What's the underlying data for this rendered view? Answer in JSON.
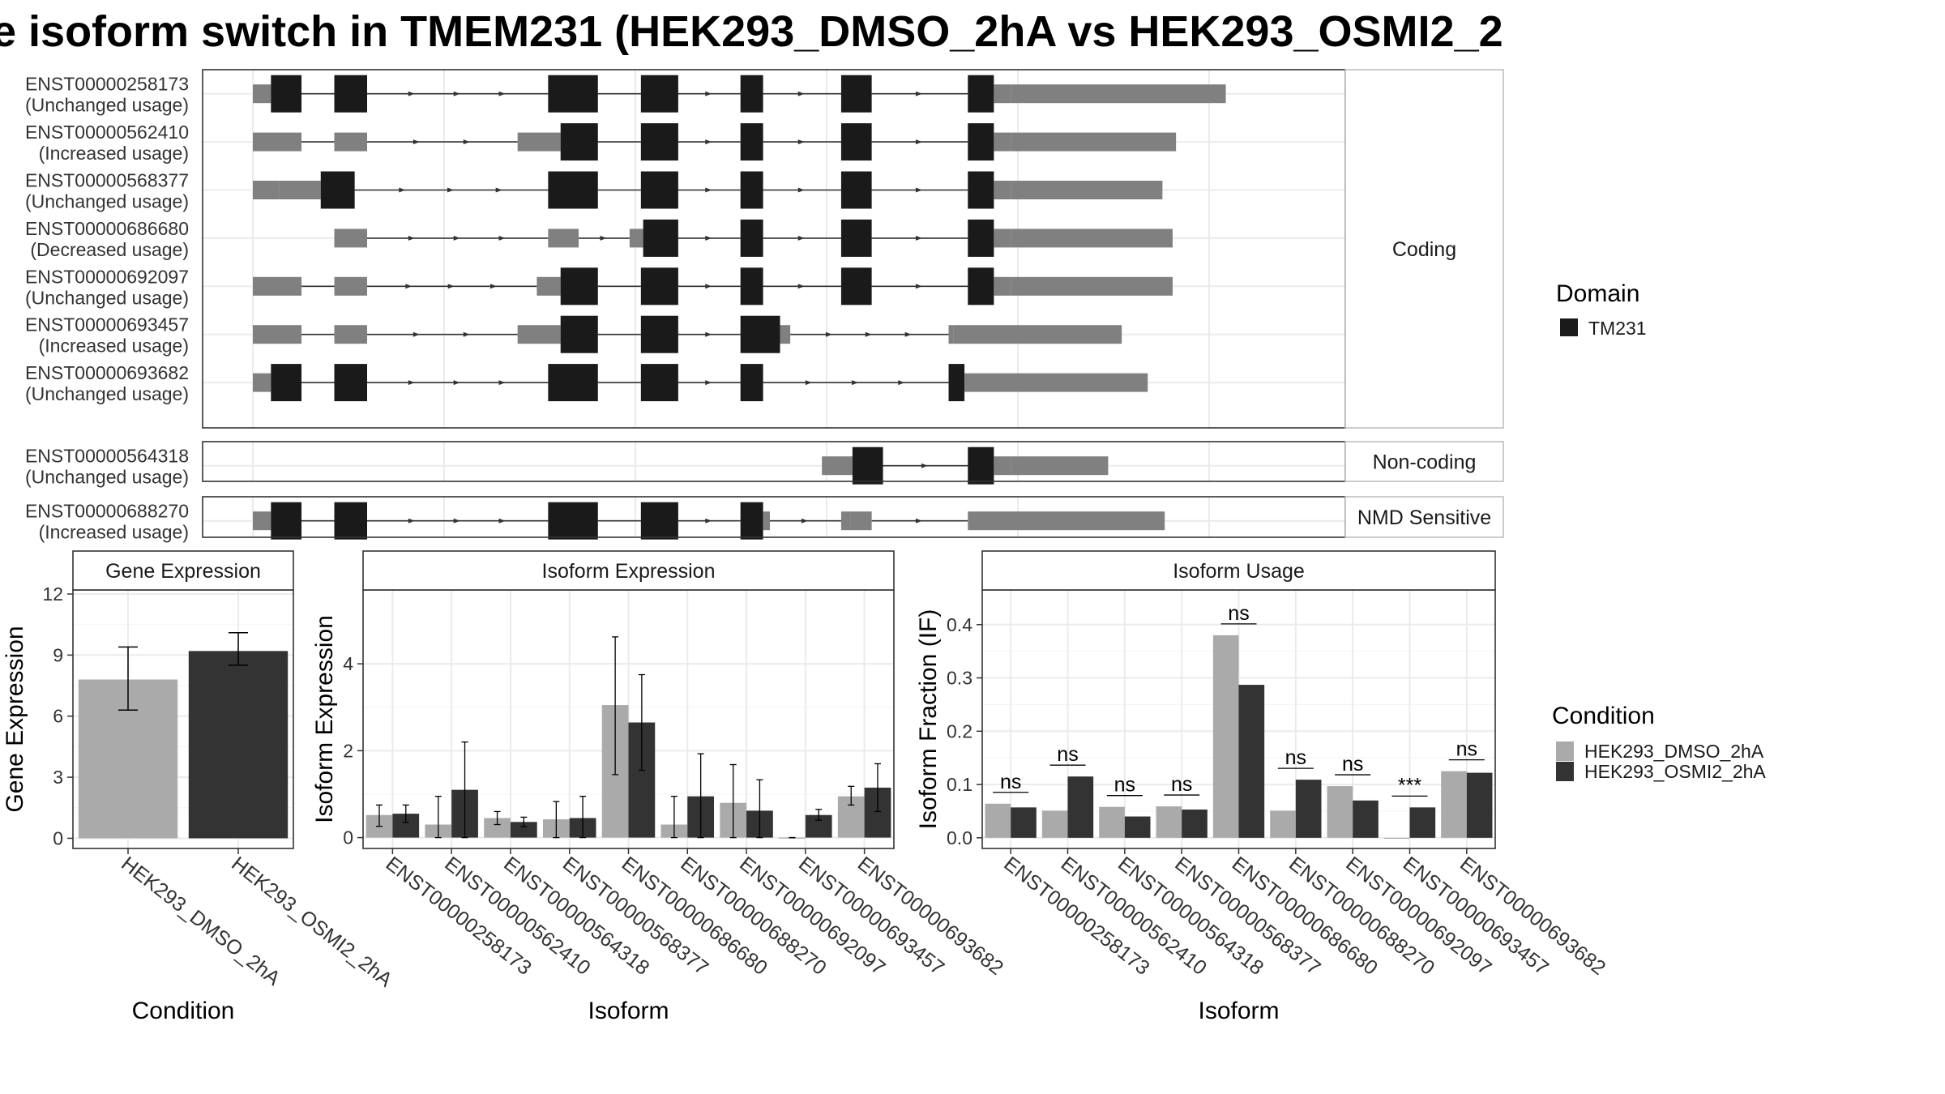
{
  "title": "e isoform switch in TMEM231 (HEK293_DMSO_2hA vs HEK293_OSMI2_2",
  "colors": {
    "exon_domain": "#1a1a1a",
    "utr": "#808080",
    "condition1": "#aaaaaa",
    "condition2": "#333333",
    "panel_border": "#333333",
    "strip_border": "#bbbbbb",
    "grid": "#ebebeb"
  },
  "structure": {
    "groups": [
      {
        "label": "Coding",
        "transcripts": [
          {
            "id": "ENST00000258173",
            "usage": "(Unchanged usage)",
            "segments": [
              [
                0.0,
                1.6,
                "u"
              ],
              [
                1.6,
                4.3,
                "d"
              ],
              [
                7.2,
                10.1,
                "d"
              ],
              [
                26.1,
                30.5,
                "d"
              ],
              [
                34.3,
                37.6,
                "d"
              ],
              [
                43.1,
                45.1,
                "d"
              ],
              [
                52.0,
                54.7,
                "d"
              ],
              [
                63.2,
                65.5,
                "d"
              ],
              [
                65.5,
                67.0,
                "u"
              ],
              [
                67.0,
                86.0,
                "u"
              ]
            ]
          },
          {
            "id": "ENST00000562410",
            "usage": "(Increased usage)",
            "segments": [
              [
                0.0,
                4.3,
                "u"
              ],
              [
                7.2,
                10.1,
                "u"
              ],
              [
                23.4,
                27.2,
                "u"
              ],
              [
                27.2,
                30.5,
                "d"
              ],
              [
                34.3,
                37.6,
                "d"
              ],
              [
                43.1,
                45.1,
                "d"
              ],
              [
                52.0,
                54.7,
                "d"
              ],
              [
                63.2,
                65.5,
                "d"
              ],
              [
                65.5,
                67.0,
                "u"
              ],
              [
                67.0,
                81.6,
                "u"
              ]
            ]
          },
          {
            "id": "ENST00000568377",
            "usage": "(Unchanged usage)",
            "segments": [
              [
                0.0,
                2.3,
                "u"
              ],
              [
                2.3,
                6.0,
                "u"
              ],
              [
                6.0,
                9.0,
                "d"
              ],
              [
                26.1,
                30.5,
                "d"
              ],
              [
                34.3,
                37.6,
                "d"
              ],
              [
                43.1,
                45.1,
                "d"
              ],
              [
                52.0,
                54.7,
                "d"
              ],
              [
                63.2,
                65.5,
                "d"
              ],
              [
                65.5,
                67.0,
                "u"
              ],
              [
                67.0,
                80.4,
                "u"
              ]
            ]
          },
          {
            "id": "ENST00000686680",
            "usage": "(Decreased usage)",
            "segments": [
              [
                7.2,
                10.1,
                "u"
              ],
              [
                26.1,
                28.8,
                "u"
              ],
              [
                33.3,
                34.5,
                "u"
              ],
              [
                34.5,
                37.6,
                "d"
              ],
              [
                43.1,
                45.1,
                "d"
              ],
              [
                52.0,
                54.7,
                "d"
              ],
              [
                63.2,
                65.5,
                "d"
              ],
              [
                65.5,
                67.0,
                "u"
              ],
              [
                67.0,
                81.3,
                "u"
              ]
            ]
          },
          {
            "id": "ENST00000692097",
            "usage": "(Unchanged usage)",
            "segments": [
              [
                0.0,
                4.3,
                "u"
              ],
              [
                7.2,
                10.1,
                "u"
              ],
              [
                25.1,
                27.2,
                "u"
              ],
              [
                27.2,
                30.5,
                "d"
              ],
              [
                34.3,
                37.6,
                "d"
              ],
              [
                43.1,
                45.1,
                "d"
              ],
              [
                52.0,
                54.7,
                "d"
              ],
              [
                63.2,
                65.5,
                "d"
              ],
              [
                65.5,
                67.0,
                "u"
              ],
              [
                67.0,
                81.3,
                "u"
              ]
            ]
          },
          {
            "id": "ENST00000693457",
            "usage": "(Increased usage)",
            "segments": [
              [
                0.0,
                4.3,
                "u"
              ],
              [
                7.2,
                10.1,
                "u"
              ],
              [
                23.4,
                27.2,
                "u"
              ],
              [
                27.2,
                30.5,
                "d"
              ],
              [
                34.3,
                37.6,
                "d"
              ],
              [
                43.1,
                46.6,
                "d"
              ],
              [
                46.6,
                47.5,
                "u"
              ],
              [
                61.5,
                61.9,
                "u"
              ],
              [
                61.9,
                76.8,
                "u"
              ]
            ]
          },
          {
            "id": "ENST00000693682",
            "usage": "(Unchanged usage)",
            "segments": [
              [
                0.0,
                1.6,
                "u"
              ],
              [
                1.6,
                4.3,
                "d"
              ],
              [
                7.2,
                10.1,
                "d"
              ],
              [
                26.1,
                30.5,
                "d"
              ],
              [
                34.3,
                37.6,
                "d"
              ],
              [
                43.1,
                45.1,
                "d"
              ],
              [
                61.5,
                62.9,
                "d"
              ],
              [
                62.9,
                79.1,
                "u"
              ]
            ]
          }
        ]
      },
      {
        "label": "Non-coding",
        "transcripts": [
          {
            "id": "ENST00000564318",
            "usage": "(Unchanged usage)",
            "segments": [
              [
                50.3,
                53.0,
                "u"
              ],
              [
                53.0,
                55.7,
                "d"
              ],
              [
                63.2,
                65.5,
                "d"
              ],
              [
                65.5,
                67.0,
                "u"
              ],
              [
                67.0,
                75.6,
                "u"
              ]
            ]
          }
        ]
      },
      {
        "label": "NMD Sensitive",
        "transcripts": [
          {
            "id": "ENST00000688270",
            "usage": "(Increased usage)",
            "segments": [
              [
                0.0,
                1.6,
                "u"
              ],
              [
                1.6,
                4.3,
                "d"
              ],
              [
                7.2,
                10.1,
                "d"
              ],
              [
                26.1,
                30.5,
                "d"
              ],
              [
                34.3,
                37.6,
                "d"
              ],
              [
                43.1,
                45.1,
                "d"
              ],
              [
                45.1,
                45.7,
                "u"
              ],
              [
                52.0,
                52.8,
                "u"
              ],
              [
                52.8,
                54.7,
                "u"
              ],
              [
                63.2,
                80.6,
                "u"
              ]
            ]
          }
        ]
      }
    ],
    "domain_legend": {
      "title": "Domain",
      "items": [
        "TM231"
      ]
    }
  },
  "chart_data": [
    {
      "type": "bar",
      "title": "Gene Expression",
      "xlabel": "Condition",
      "ylabel": "Gene Expression",
      "categories": [
        "HEK293_DMSO_2hA",
        "HEK293_OSMI2_2hA"
      ],
      "values": [
        7.8,
        9.2
      ],
      "errors": [
        [
          6.3,
          9.4
        ],
        [
          8.5,
          10.1
        ]
      ],
      "ylim": [
        -0.5,
        12.2
      ],
      "yticks": [
        0,
        3,
        6,
        9,
        12
      ],
      "grid": true
    },
    {
      "type": "bar",
      "title": "Isoform Expression",
      "xlabel": "Isoform",
      "ylabel": "Isoform Expression",
      "categories": [
        "ENST00000258173",
        "ENST00000562410",
        "ENST00000564318",
        "ENST00000568377",
        "ENST00000686680",
        "ENST00000688270",
        "ENST00000692097",
        "ENST00000693457",
        "ENST00000693682"
      ],
      "series": [
        {
          "name": "HEK293_DMSO_2hA",
          "values": [
            0.52,
            0.3,
            0.45,
            0.42,
            3.05,
            0.3,
            0.8,
            0.0,
            0.95
          ],
          "errors": [
            [
              0.26,
              0.75
            ],
            [
              0.0,
              0.95
            ],
            [
              0.3,
              0.6
            ],
            [
              0.0,
              0.83
            ],
            [
              1.45,
              4.62
            ],
            [
              0.0,
              0.95
            ],
            [
              0.0,
              1.68
            ],
            [
              0.0,
              0.0
            ],
            [
              0.75,
              1.18
            ]
          ]
        },
        {
          "name": "HEK293_OSMI2_2hA",
          "values": [
            0.55,
            1.1,
            0.36,
            0.45,
            2.65,
            0.95,
            0.62,
            0.52,
            1.15
          ],
          "errors": [
            [
              0.35,
              0.75
            ],
            [
              0.0,
              2.2
            ],
            [
              0.25,
              0.47
            ],
            [
              0.0,
              0.95
            ],
            [
              1.55,
              3.75
            ],
            [
              0.0,
              1.93
            ],
            [
              0.0,
              1.33
            ],
            [
              0.4,
              0.65
            ],
            [
              0.6,
              1.7
            ]
          ]
        }
      ],
      "ylim": [
        -0.25,
        5.7
      ],
      "yticks": [
        0,
        2,
        4
      ],
      "grid": true
    },
    {
      "type": "bar",
      "title": "Isoform Usage",
      "xlabel": "Isoform",
      "ylabel": "Isoform Fraction (IF)",
      "categories": [
        "ENST00000258173",
        "ENST00000562410",
        "ENST00000564318",
        "ENST00000568377",
        "ENST00000686680",
        "ENST00000688270",
        "ENST00000692097",
        "ENST00000693457",
        "ENST00000693682"
      ],
      "series": [
        {
          "name": "HEK293_DMSO_2hA",
          "values": [
            0.064,
            0.051,
            0.058,
            0.059,
            0.38,
            0.051,
            0.097,
            0.0,
            0.125
          ]
        },
        {
          "name": "HEK293_OSMI2_2hA",
          "values": [
            0.057,
            0.115,
            0.04,
            0.053,
            0.287,
            0.109,
            0.07,
            0.057,
            0.122
          ]
        }
      ],
      "significance": [
        "ns",
        "ns",
        "ns",
        "ns",
        "ns",
        "ns",
        "ns",
        "***",
        "ns"
      ],
      "ylim": [
        -0.02,
        0.465
      ],
      "yticks": [
        0.0,
        0.1,
        0.2,
        0.3,
        0.4
      ],
      "ytick_labels": [
        "0.0",
        "0.1",
        "0.2",
        "0.3",
        "0.4"
      ],
      "grid": true
    }
  ],
  "condition_legend": {
    "title": "Condition",
    "items": [
      "HEK293_DMSO_2hA",
      "HEK293_OSMI2_2hA"
    ]
  }
}
